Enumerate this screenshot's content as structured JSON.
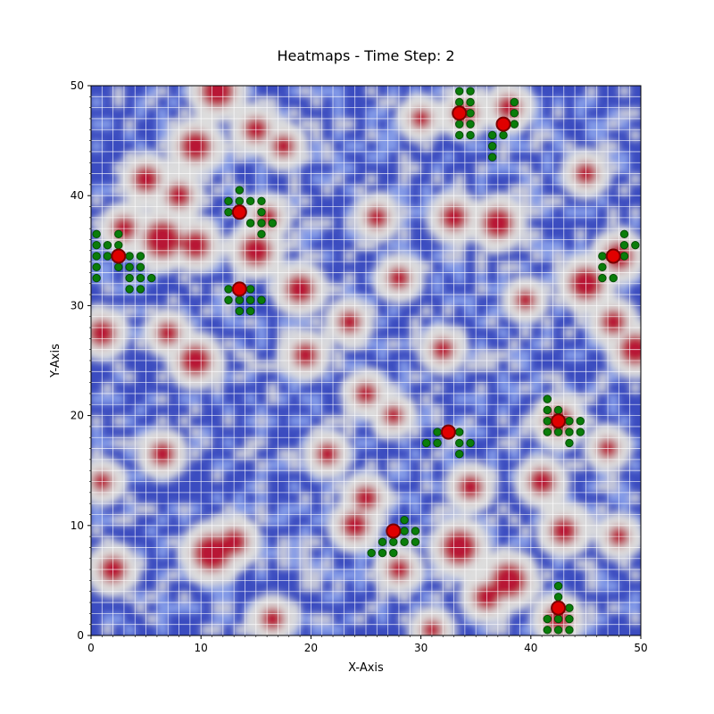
{
  "chart_data": {
    "type": "heatmap",
    "title": "Heatmaps - Time Step: 2",
    "xlabel": "X-Axis",
    "ylabel": "Y-Axis",
    "xlim": [
      0,
      50
    ],
    "ylim": [
      0,
      50
    ],
    "xticks": [
      "0",
      "10",
      "20",
      "30",
      "40",
      "50"
    ],
    "yticks": [
      "0",
      "10",
      "20",
      "30",
      "40",
      "50"
    ],
    "grid": true,
    "colormap": "coolwarm",
    "colors": {
      "cold": "#3b4cc0",
      "neutral": "#dddddd",
      "hot": "#b40426",
      "agent_fill": "#e00000",
      "agent_edge": "#7a0000",
      "neighbor_fill": "#0a7d0a",
      "neighbor_edge": "#054d05",
      "grid": "#ffffff"
    },
    "hot_regions": [
      {
        "x": 11.5,
        "y": 49.5,
        "r": 1.6
      },
      {
        "x": 9.5,
        "y": 44.5,
        "r": 1.5
      },
      {
        "x": 15,
        "y": 46,
        "r": 1.2
      },
      {
        "x": 17.5,
        "y": 44.5,
        "r": 1.1
      },
      {
        "x": 5,
        "y": 41.5,
        "r": 1.3
      },
      {
        "x": 8,
        "y": 40,
        "r": 1.2
      },
      {
        "x": 3,
        "y": 37,
        "r": 1.2
      },
      {
        "x": 6.5,
        "y": 36,
        "r": 1.8
      },
      {
        "x": 9.5,
        "y": 35.5,
        "r": 1.4
      },
      {
        "x": 15,
        "y": 35,
        "r": 1.5
      },
      {
        "x": 16,
        "y": 38,
        "r": 1.1
      },
      {
        "x": 19,
        "y": 31.5,
        "r": 1.4
      },
      {
        "x": 1,
        "y": 27.5,
        "r": 1.3
      },
      {
        "x": 7,
        "y": 27.5,
        "r": 1.1
      },
      {
        "x": 9.5,
        "y": 25,
        "r": 1.5
      },
      {
        "x": 23.5,
        "y": 28.5,
        "r": 1.1
      },
      {
        "x": 19.5,
        "y": 25.5,
        "r": 1.2
      },
      {
        "x": 34,
        "y": 47.5,
        "r": 1.2
      },
      {
        "x": 30,
        "y": 47,
        "r": 1.0
      },
      {
        "x": 38,
        "y": 48,
        "r": 1.2
      },
      {
        "x": 37,
        "y": 37.5,
        "r": 1.5
      },
      {
        "x": 33,
        "y": 38,
        "r": 1.3
      },
      {
        "x": 45,
        "y": 42,
        "r": 1.1
      },
      {
        "x": 45,
        "y": 32,
        "r": 1.6
      },
      {
        "x": 48,
        "y": 34.5,
        "r": 1.4
      },
      {
        "x": 49.5,
        "y": 26,
        "r": 1.5
      },
      {
        "x": 47.5,
        "y": 28.5,
        "r": 1.2
      },
      {
        "x": 26,
        "y": 38,
        "r": 1.1
      },
      {
        "x": 39.5,
        "y": 30.5,
        "r": 1.0
      },
      {
        "x": 32,
        "y": 26,
        "r": 1.1
      },
      {
        "x": 28,
        "y": 32.5,
        "r": 1.1
      },
      {
        "x": 25,
        "y": 22,
        "r": 1.1
      },
      {
        "x": 27.5,
        "y": 20,
        "r": 1.0
      },
      {
        "x": 42.5,
        "y": 19.5,
        "r": 1.4
      },
      {
        "x": 41,
        "y": 14,
        "r": 1.3
      },
      {
        "x": 34.5,
        "y": 13.5,
        "r": 1.2
      },
      {
        "x": 21.5,
        "y": 16.5,
        "r": 1.1
      },
      {
        "x": 6.5,
        "y": 16.5,
        "r": 1.2
      },
      {
        "x": 11,
        "y": 7.5,
        "r": 1.8
      },
      {
        "x": 13,
        "y": 8.5,
        "r": 1.3
      },
      {
        "x": 2,
        "y": 6,
        "r": 1.3
      },
      {
        "x": 24,
        "y": 10,
        "r": 1.3
      },
      {
        "x": 25,
        "y": 12.5,
        "r": 1.2
      },
      {
        "x": 28,
        "y": 6,
        "r": 1.1
      },
      {
        "x": 33.5,
        "y": 8,
        "r": 1.7
      },
      {
        "x": 38,
        "y": 5,
        "r": 1.7
      },
      {
        "x": 36,
        "y": 3.5,
        "r": 1.3
      },
      {
        "x": 43,
        "y": 9.5,
        "r": 1.3
      },
      {
        "x": 42.5,
        "y": 1.5,
        "r": 1.3
      },
      {
        "x": 48,
        "y": 9,
        "r": 1.0
      },
      {
        "x": 16.5,
        "y": 1.5,
        "r": 1.1
      },
      {
        "x": 31,
        "y": 0.5,
        "r": 1.0
      },
      {
        "x": 47,
        "y": 17,
        "r": 1.0
      },
      {
        "x": 1,
        "y": 14,
        "r": 1.0
      }
    ],
    "agents": [
      {
        "x": 2.5,
        "y": 34.5
      },
      {
        "x": 13.5,
        "y": 38.5
      },
      {
        "x": 13.5,
        "y": 31.5
      },
      {
        "x": 33.5,
        "y": 47.5
      },
      {
        "x": 37.5,
        "y": 46.5
      },
      {
        "x": 47.5,
        "y": 34.5
      },
      {
        "x": 42.5,
        "y": 19.5
      },
      {
        "x": 32.5,
        "y": 18.5
      },
      {
        "x": 27.5,
        "y": 9.5
      },
      {
        "x": 42.5,
        "y": 2.5
      }
    ],
    "neighbors": [
      {
        "x": 0.5,
        "y": 36.5
      },
      {
        "x": 0.5,
        "y": 35.5
      },
      {
        "x": 0.5,
        "y": 34.5
      },
      {
        "x": 0.5,
        "y": 33.5
      },
      {
        "x": 0.5,
        "y": 32.5
      },
      {
        "x": 1.5,
        "y": 35.5
      },
      {
        "x": 1.5,
        "y": 34.5
      },
      {
        "x": 2.5,
        "y": 36.5
      },
      {
        "x": 2.5,
        "y": 35.5
      },
      {
        "x": 2.5,
        "y": 33.5
      },
      {
        "x": 3.5,
        "y": 34.5
      },
      {
        "x": 3.5,
        "y": 33.5
      },
      {
        "x": 3.5,
        "y": 32.5
      },
      {
        "x": 3.5,
        "y": 31.5
      },
      {
        "x": 4.5,
        "y": 34.5
      },
      {
        "x": 4.5,
        "y": 33.5
      },
      {
        "x": 4.5,
        "y": 32.5
      },
      {
        "x": 4.5,
        "y": 31.5
      },
      {
        "x": 5.5,
        "y": 32.5
      },
      {
        "x": 12.5,
        "y": 39.5
      },
      {
        "x": 12.5,
        "y": 38.5
      },
      {
        "x": 13.5,
        "y": 40.5
      },
      {
        "x": 13.5,
        "y": 39.5
      },
      {
        "x": 14.5,
        "y": 39.5
      },
      {
        "x": 14.5,
        "y": 37.5
      },
      {
        "x": 15.5,
        "y": 39.5
      },
      {
        "x": 15.5,
        "y": 38.5
      },
      {
        "x": 15.5,
        "y": 37.5
      },
      {
        "x": 15.5,
        "y": 36.5
      },
      {
        "x": 16.5,
        "y": 37.5
      },
      {
        "x": 12.5,
        "y": 31.5
      },
      {
        "x": 12.5,
        "y": 30.5
      },
      {
        "x": 13.5,
        "y": 30.5
      },
      {
        "x": 13.5,
        "y": 29.5
      },
      {
        "x": 14.5,
        "y": 31.5
      },
      {
        "x": 14.5,
        "y": 30.5
      },
      {
        "x": 14.5,
        "y": 29.5
      },
      {
        "x": 15.5,
        "y": 30.5
      },
      {
        "x": 33.5,
        "y": 49.5
      },
      {
        "x": 33.5,
        "y": 48.5
      },
      {
        "x": 33.5,
        "y": 46.5
      },
      {
        "x": 33.5,
        "y": 45.5
      },
      {
        "x": 34.5,
        "y": 49.5
      },
      {
        "x": 34.5,
        "y": 48.5
      },
      {
        "x": 34.5,
        "y": 47.5
      },
      {
        "x": 34.5,
        "y": 46.5
      },
      {
        "x": 34.5,
        "y": 45.5
      },
      {
        "x": 36.5,
        "y": 45.5
      },
      {
        "x": 36.5,
        "y": 44.5
      },
      {
        "x": 36.5,
        "y": 43.5
      },
      {
        "x": 37.5,
        "y": 45.5
      },
      {
        "x": 38.5,
        "y": 48.5
      },
      {
        "x": 38.5,
        "y": 47.5
      },
      {
        "x": 38.5,
        "y": 46.5
      },
      {
        "x": 46.5,
        "y": 34.5
      },
      {
        "x": 46.5,
        "y": 33.5
      },
      {
        "x": 46.5,
        "y": 32.5
      },
      {
        "x": 47.5,
        "y": 32.5
      },
      {
        "x": 48.5,
        "y": 36.5
      },
      {
        "x": 48.5,
        "y": 35.5
      },
      {
        "x": 48.5,
        "y": 34.5
      },
      {
        "x": 49.5,
        "y": 35.5
      },
      {
        "x": 41.5,
        "y": 21.5
      },
      {
        "x": 41.5,
        "y": 20.5
      },
      {
        "x": 41.5,
        "y": 19.5
      },
      {
        "x": 41.5,
        "y": 18.5
      },
      {
        "x": 42.5,
        "y": 20.5
      },
      {
        "x": 42.5,
        "y": 18.5
      },
      {
        "x": 43.5,
        "y": 19.5
      },
      {
        "x": 43.5,
        "y": 18.5
      },
      {
        "x": 43.5,
        "y": 17.5
      },
      {
        "x": 44.5,
        "y": 19.5
      },
      {
        "x": 44.5,
        "y": 18.5
      },
      {
        "x": 30.5,
        "y": 17.5
      },
      {
        "x": 31.5,
        "y": 18.5
      },
      {
        "x": 31.5,
        "y": 17.5
      },
      {
        "x": 33.5,
        "y": 18.5
      },
      {
        "x": 33.5,
        "y": 17.5
      },
      {
        "x": 33.5,
        "y": 16.5
      },
      {
        "x": 34.5,
        "y": 17.5
      },
      {
        "x": 25.5,
        "y": 7.5
      },
      {
        "x": 26.5,
        "y": 8.5
      },
      {
        "x": 26.5,
        "y": 7.5
      },
      {
        "x": 27.5,
        "y": 8.5
      },
      {
        "x": 27.5,
        "y": 7.5
      },
      {
        "x": 28.5,
        "y": 10.5
      },
      {
        "x": 28.5,
        "y": 9.5
      },
      {
        "x": 28.5,
        "y": 8.5
      },
      {
        "x": 29.5,
        "y": 9.5
      },
      {
        "x": 29.5,
        "y": 8.5
      },
      {
        "x": 41.5,
        "y": 1.5
      },
      {
        "x": 41.5,
        "y": 0.5
      },
      {
        "x": 42.5,
        "y": 4.5
      },
      {
        "x": 42.5,
        "y": 3.5
      },
      {
        "x": 42.5,
        "y": 1.5
      },
      {
        "x": 42.5,
        "y": 0.5
      },
      {
        "x": 43.5,
        "y": 2.5
      },
      {
        "x": 43.5,
        "y": 1.5
      },
      {
        "x": 43.5,
        "y": 0.5
      }
    ]
  }
}
